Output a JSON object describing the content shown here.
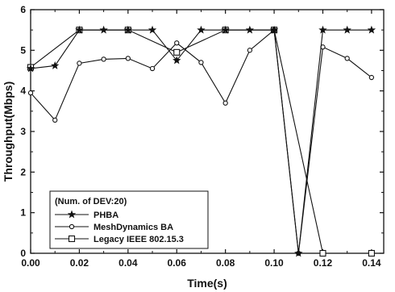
{
  "chart_data": {
    "type": "line",
    "xlabel": "Time(s)",
    "ylabel": "Throughput(Mbps)",
    "xlim": [
      0,
      0.145
    ],
    "ylim": [
      0,
      6
    ],
    "x_ticks": [
      "0.00",
      "0.02",
      "0.04",
      "0.06",
      "0.08",
      "0.10",
      "0.12",
      "0.14"
    ],
    "y_ticks": [
      "0",
      "1",
      "2",
      "3",
      "4",
      "5",
      "6"
    ],
    "legend": {
      "title": "(Num. of DEV:20)",
      "placement": "bottom-left"
    },
    "series": [
      {
        "name": "PHBA",
        "marker": "star",
        "color": "#111111",
        "x": [
          0.0,
          0.01,
          0.02,
          0.03,
          0.04,
          0.05,
          0.06,
          0.07,
          0.08,
          0.09,
          0.1,
          0.11,
          0.12,
          0.13,
          0.14
        ],
        "y": [
          4.55,
          4.62,
          5.5,
          5.5,
          5.5,
          5.5,
          4.75,
          5.5,
          5.5,
          5.5,
          5.5,
          0.0,
          5.5,
          5.5,
          5.5
        ]
      },
      {
        "name": "MeshDynamics BA",
        "marker": "circle",
        "color": "#111111",
        "x": [
          0.0,
          0.01,
          0.02,
          0.03,
          0.04,
          0.05,
          0.06,
          0.07,
          0.08,
          0.09,
          0.1,
          0.11,
          0.12,
          0.13,
          0.14
        ],
        "y": [
          3.95,
          3.28,
          4.68,
          4.78,
          4.8,
          4.55,
          5.18,
          4.7,
          3.7,
          5.0,
          5.5,
          0.0,
          5.08,
          4.8,
          4.33
        ]
      },
      {
        "name": "Legacy IEEE 802.15.3",
        "marker": "square",
        "color": "#111111",
        "x": [
          0.0,
          0.02,
          0.04,
          0.06,
          0.08,
          0.1,
          0.12,
          0.14
        ],
        "y": [
          4.58,
          5.5,
          5.5,
          4.95,
          5.5,
          5.5,
          0.0,
          0.0
        ]
      }
    ]
  }
}
